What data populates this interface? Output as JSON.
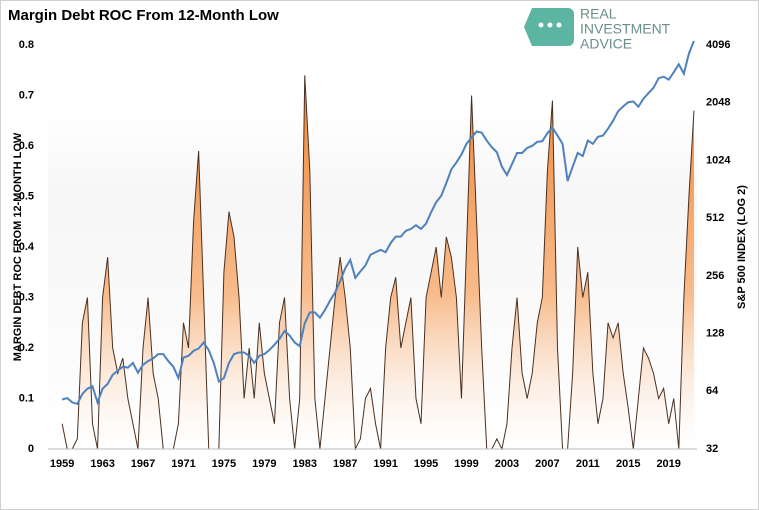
{
  "chart_data": {
    "type": "area",
    "title": "Margin Debt ROC From 12-Month Low",
    "y_label": "MARGIN DEBT ROC FROM 12-MONTH LOW",
    "y2_label": "S&P 500 INDEX (LOG 2)",
    "xlim": [
      1957.6,
      2021.8
    ],
    "xticks": [
      1959,
      1963,
      1967,
      1971,
      1975,
      1979,
      1983,
      1987,
      1991,
      1995,
      1999,
      2003,
      2007,
      2011,
      2015,
      2019
    ],
    "ylim": [
      0,
      0.8
    ],
    "yticks": [
      0,
      0.1,
      0.2,
      0.3,
      0.4,
      0.5,
      0.6,
      0.7,
      0.8
    ],
    "y2lim": [
      32,
      4096
    ],
    "y2ticks": [
      32,
      64,
      128,
      256,
      512,
      1024,
      2048,
      4096
    ],
    "y2_log_base": 2,
    "x": [
      1959,
      1959.5,
      1960,
      1960.5,
      1961,
      1961.5,
      1962,
      1962.5,
      1963,
      1963.5,
      1964,
      1964.5,
      1965,
      1965.5,
      1966,
      1966.5,
      1967,
      1967.5,
      1968,
      1968.5,
      1969,
      1969.5,
      1970,
      1970.5,
      1971,
      1971.5,
      1972,
      1972.5,
      1973,
      1973.5,
      1974,
      1974.5,
      1975,
      1975.5,
      1976,
      1976.5,
      1977,
      1977.5,
      1978,
      1978.5,
      1979,
      1979.5,
      1980,
      1980.5,
      1981,
      1981.5,
      1982,
      1982.5,
      1983,
      1983.5,
      1984,
      1984.5,
      1985,
      1985.5,
      1986,
      1986.5,
      1987,
      1987.5,
      1988,
      1988.5,
      1989,
      1989.5,
      1990,
      1990.5,
      1991,
      1991.5,
      1992,
      1992.5,
      1993,
      1993.5,
      1994,
      1994.5,
      1995,
      1995.5,
      1996,
      1996.5,
      1997,
      1997.5,
      1998,
      1998.5,
      1999,
      1999.5,
      2000,
      2000.5,
      2001,
      2001.5,
      2002,
      2002.5,
      2003,
      2003.5,
      2004,
      2004.5,
      2005,
      2005.5,
      2006,
      2006.5,
      2007,
      2007.5,
      2008,
      2008.5,
      2009,
      2009.5,
      2010,
      2010.5,
      2011,
      2011.5,
      2012,
      2012.5,
      2013,
      2013.5,
      2014,
      2014.5,
      2015,
      2015.5,
      2016,
      2016.5,
      2017,
      2017.5,
      2018,
      2018.5,
      2019,
      2019.5,
      2020,
      2020.5,
      2021,
      2021.5
    ],
    "series": [
      {
        "name": "Margin Debt ROC",
        "type": "area",
        "color": "#f28c3c",
        "line_color": "#4a3020",
        "values": [
          0.05,
          0,
          0,
          0.02,
          0.25,
          0.3,
          0.05,
          0,
          0.3,
          0.38,
          0.2,
          0.15,
          0.18,
          0.1,
          0.05,
          0,
          0.2,
          0.3,
          0.15,
          0.1,
          0,
          0,
          0,
          0.05,
          0.25,
          0.2,
          0.45,
          0.59,
          0.3,
          0,
          0,
          0,
          0.35,
          0.47,
          0.42,
          0.3,
          0.1,
          0.2,
          0.1,
          0.25,
          0.15,
          0.1,
          0.05,
          0.25,
          0.3,
          0.1,
          0,
          0.1,
          0.74,
          0.55,
          0.1,
          0,
          0.1,
          0.2,
          0.3,
          0.38,
          0.3,
          0.2,
          0,
          0.02,
          0.1,
          0.12,
          0.05,
          0,
          0.2,
          0.3,
          0.34,
          0.2,
          0.25,
          0.3,
          0.1,
          0.05,
          0.3,
          0.35,
          0.4,
          0.3,
          0.42,
          0.38,
          0.3,
          0.1,
          0.4,
          0.7,
          0.45,
          0.2,
          0,
          0,
          0.02,
          0,
          0.05,
          0.2,
          0.3,
          0.15,
          0.1,
          0.15,
          0.25,
          0.3,
          0.55,
          0.69,
          0.2,
          0,
          0,
          0.15,
          0.4,
          0.3,
          0.35,
          0.15,
          0.05,
          0.1,
          0.25,
          0.22,
          0.25,
          0.15,
          0.08,
          0,
          0.1,
          0.2,
          0.18,
          0.15,
          0.1,
          0.12,
          0.05,
          0.1,
          0,
          0.3,
          0.5,
          0.67
        ]
      },
      {
        "name": "S&P 500",
        "type": "line",
        "axis": "y2",
        "color": "#4f81bd",
        "values": [
          58,
          59,
          56,
          55,
          62,
          66,
          68,
          56,
          66,
          70,
          78,
          82,
          86,
          85,
          90,
          80,
          88,
          92,
          95,
          100,
          100,
          92,
          86,
          75,
          96,
          98,
          104,
          107,
          115,
          105,
          90,
          72,
          75,
          90,
          100,
          102,
          102,
          98,
          90,
          98,
          100,
          105,
          112,
          120,
          132,
          125,
          115,
          110,
          145,
          165,
          165,
          155,
          170,
          190,
          210,
          240,
          280,
          310,
          250,
          270,
          290,
          330,
          340,
          350,
          340,
          380,
          410,
          410,
          440,
          450,
          470,
          450,
          480,
          550,
          620,
          670,
          780,
          920,
          1000,
          1100,
          1250,
          1350,
          1450,
          1430,
          1300,
          1200,
          1130,
          950,
          860,
          980,
          1120,
          1120,
          1190,
          1220,
          1280,
          1290,
          1420,
          1520,
          1380,
          1250,
          800,
          950,
          1120,
          1080,
          1300,
          1250,
          1360,
          1380,
          1500,
          1650,
          1850,
          1960,
          2060,
          2080,
          1950,
          2150,
          2300,
          2450,
          2750,
          2800,
          2700,
          2950,
          3250,
          2900,
          3700,
          4300
        ]
      }
    ]
  },
  "logo": {
    "lines": [
      "REAL",
      "INVESTMENT",
      "ADVICE"
    ]
  }
}
